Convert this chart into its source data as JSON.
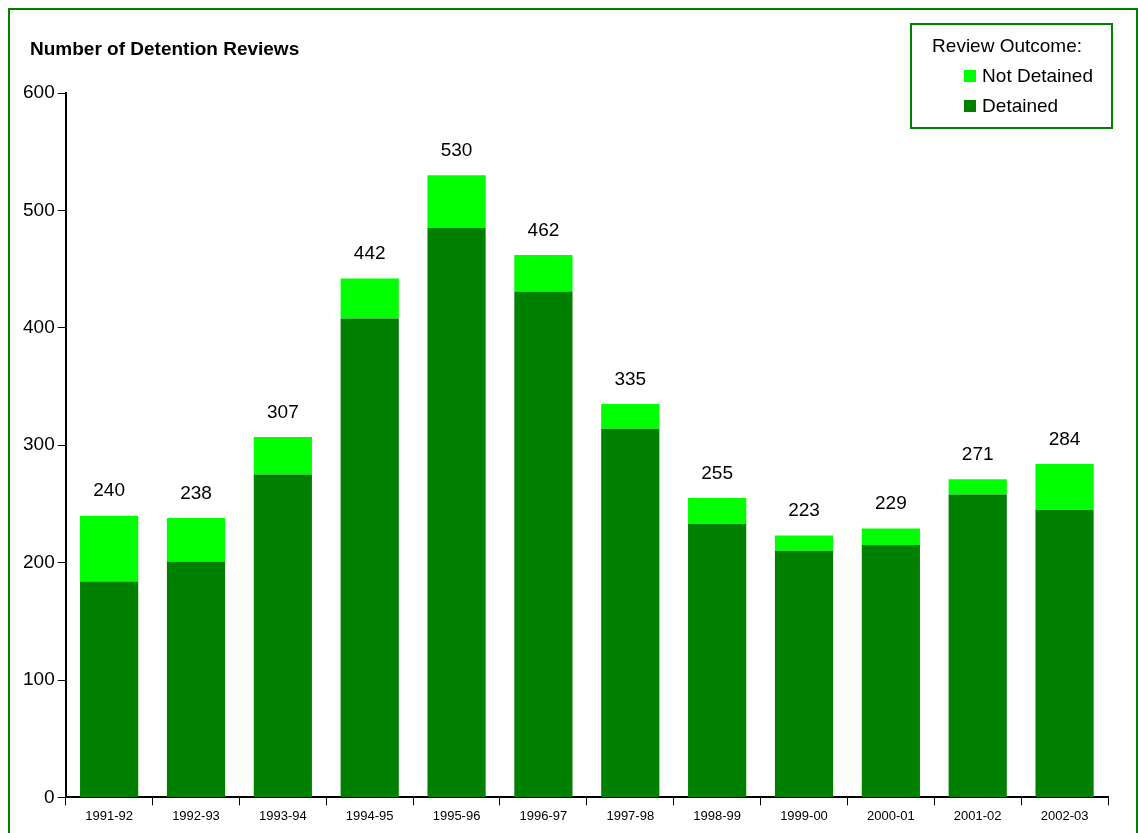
{
  "chart_data": {
    "type": "bar",
    "ylabel": "Number of Detention Reviews",
    "legend_title": "Review Outcome:",
    "categories": [
      "1991-92",
      "1992-93",
      "1993-94",
      "1994-95",
      "1995-96",
      "1996-97",
      "1997-98",
      "1998-99",
      "1999-00",
      "2000-01",
      "2001-02",
      "2002-03"
    ],
    "series": [
      {
        "name": "Detained",
        "color": "#008000",
        "values": [
          184,
          201,
          275,
          408,
          485,
          431,
          314,
          233,
          210,
          215,
          258,
          245
        ]
      },
      {
        "name": "Not Detained",
        "color": "#00ff00",
        "values": [
          56,
          37,
          32,
          34,
          45,
          31,
          21,
          22,
          13,
          14,
          13,
          39
        ]
      }
    ],
    "stacked": true,
    "totals": [
      "240",
      "238",
      "307",
      "442",
      "530",
      "462",
      "335",
      "255",
      "223",
      "229",
      "271",
      "284"
    ],
    "ylim": [
      0,
      600
    ],
    "yticks": [
      0,
      100,
      200,
      300,
      400,
      500,
      600
    ],
    "grid": false,
    "legend": "top right"
  }
}
